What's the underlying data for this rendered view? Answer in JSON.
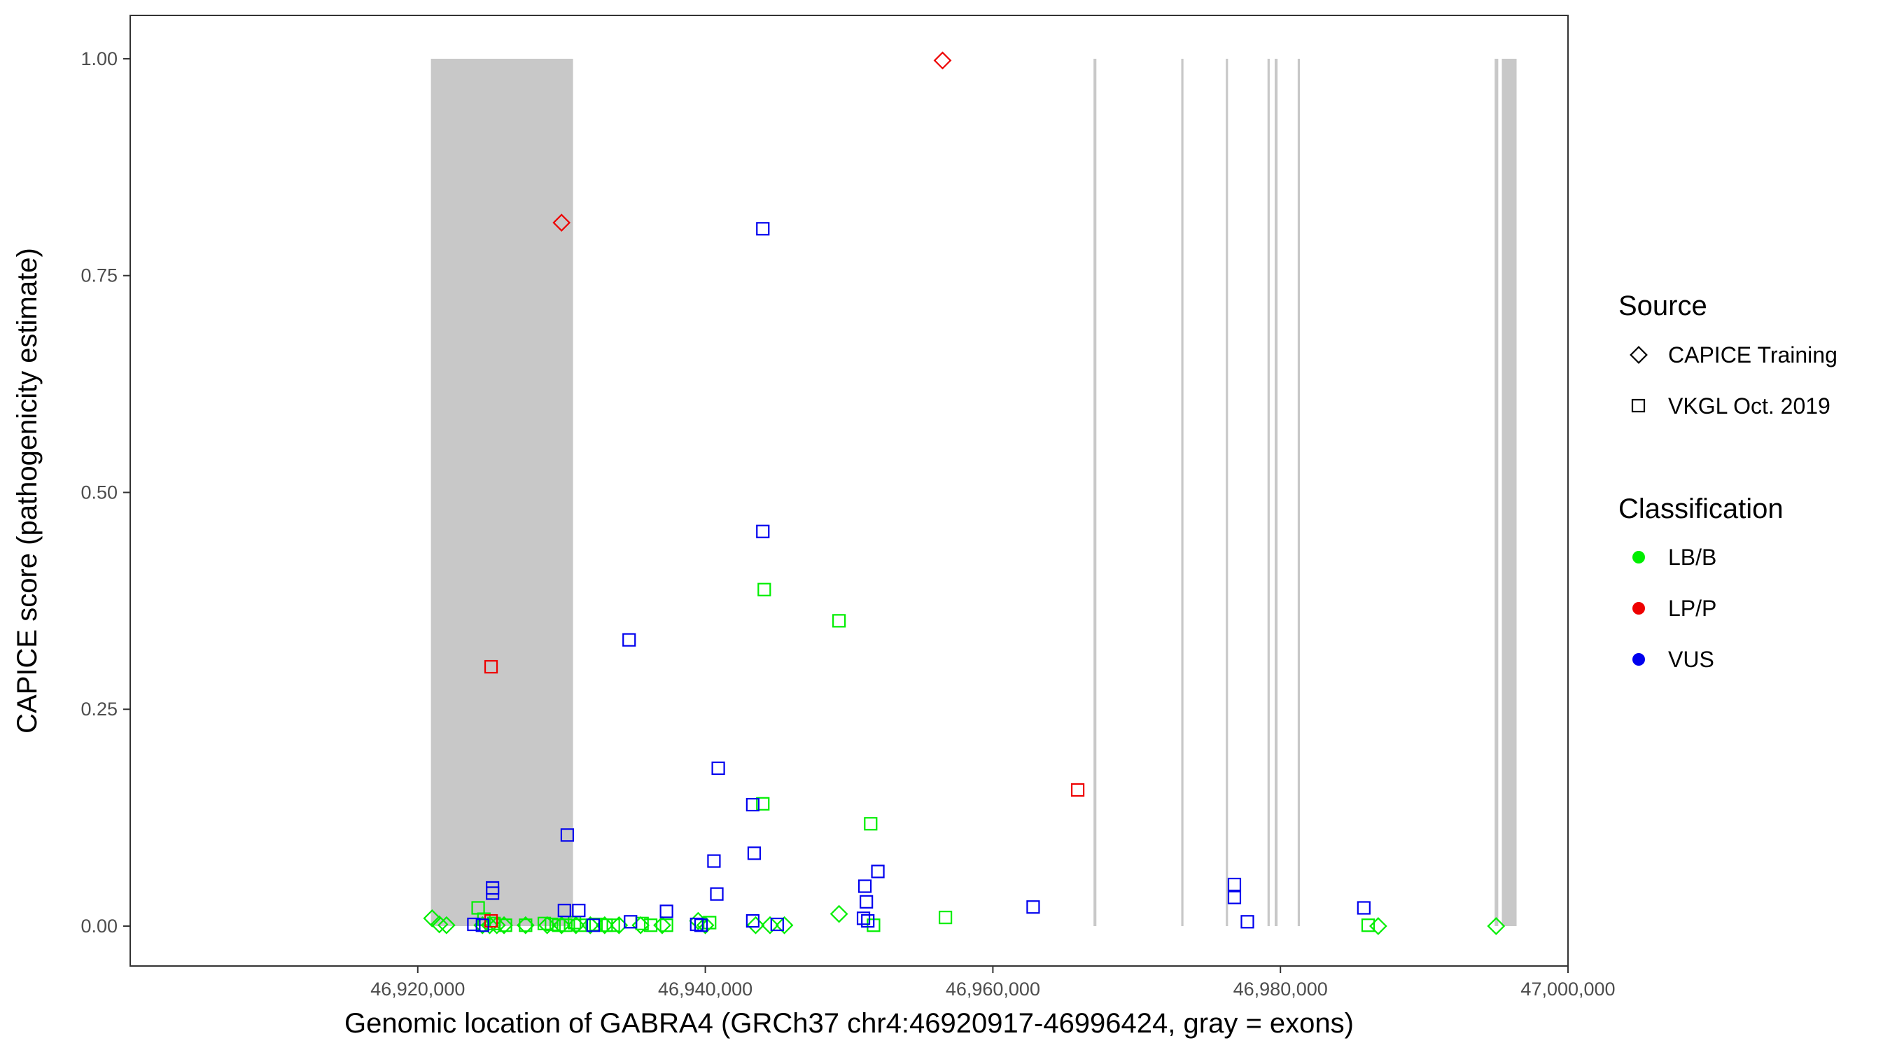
{
  "chart_data": {
    "type": "scatter",
    "title": "",
    "xlabel": "Genomic location of GABRA4 (GRCh37 chr4:46920917-46996424, gray = exons)",
    "ylabel": "CAPICE score (pathogenicity estimate)",
    "xlim": [
      46900000,
      47000000
    ],
    "ylim": [
      -0.046,
      1.05
    ],
    "x_ticks": [
      46920000,
      46940000,
      46960000,
      46980000,
      47000000
    ],
    "x_tick_labels": [
      "46,920,000",
      "46,940,000",
      "46,960,000",
      "46,980,000",
      "47,000,000"
    ],
    "y_ticks": [
      0,
      0.25,
      0.5,
      0.75,
      1
    ],
    "y_tick_labels": [
      "0.00",
      "0.25",
      "0.50",
      "0.75",
      "1.00"
    ],
    "grid": false,
    "exon_regions": [
      [
        46920917,
        46930800
      ],
      [
        46967000,
        46967200
      ],
      [
        46973100,
        46973250
      ],
      [
        46976200,
        46976350
      ],
      [
        46979100,
        46979250
      ],
      [
        46979600,
        46979800
      ],
      [
        46981200,
        46981300
      ],
      [
        46994900,
        46995150
      ],
      [
        46995400,
        46996424
      ]
    ],
    "exon_color": "#c8c8c8",
    "legend": {
      "placement": "right",
      "source_title": "Source",
      "source_items": [
        {
          "label": "CAPICE Training",
          "shape": "diamond"
        },
        {
          "label": "VKGL Oct. 2019",
          "shape": "square"
        }
      ],
      "class_title": "Classification",
      "class_items": [
        {
          "label": "LB/B",
          "color": "#00ee00"
        },
        {
          "label": "LP/P",
          "color": "#ee0000"
        },
        {
          "label": "VUS",
          "color": "#0000ee"
        }
      ]
    },
    "series": [
      {
        "name": "LB/B",
        "source": "CAPICE Training",
        "shape": "diamond",
        "color": "#00ee00",
        "x": [
          46921000,
          46921500,
          46922000,
          46924500,
          46925000,
          46925500,
          46926000,
          46927500,
          46929000,
          46930000,
          46931000,
          46932000,
          46933000,
          46934000,
          46935500,
          46937000,
          46939500,
          46940000,
          46943500,
          46944500,
          46945500,
          46949300,
          46986800,
          46995000
        ],
        "y": [
          0.009,
          0.002,
          0.001,
          0.001,
          0.001,
          0.001,
          0.001,
          0.001,
          0.001,
          0.001,
          0.001,
          0.001,
          0.001,
          0.001,
          0.001,
          0.001,
          0.006,
          0.001,
          0.001,
          0.001,
          0.001,
          0.014,
          0.0,
          0.0
        ]
      },
      {
        "name": "LB/B",
        "source": "VKGL Oct. 2019",
        "shape": "square",
        "color": "#00ee00",
        "x": [
          46924200,
          46924600,
          46925300,
          46926100,
          46927500,
          46928800,
          46929300,
          46929800,
          46930300,
          46930900,
          46931300,
          46932400,
          46933100,
          46933600,
          46935600,
          46936200,
          46937300,
          46940300,
          46944000,
          46944100,
          46949300,
          46951500,
          46951700,
          46956700,
          46986100
        ],
        "y": [
          0.021,
          0.008,
          0.003,
          0.001,
          0.001,
          0.003,
          0.002,
          0.001,
          0.001,
          0.004,
          0.001,
          0.002,
          0.001,
          0.001,
          0.003,
          0.001,
          0.001,
          0.004,
          0.141,
          0.388,
          0.352,
          0.118,
          0.001,
          0.01,
          0.001
        ]
      },
      {
        "name": "LP/P",
        "source": "CAPICE Training",
        "shape": "diamond",
        "color": "#ee0000",
        "x": [
          46930000,
          46956500
        ],
        "y": [
          0.811,
          0.998
        ]
      },
      {
        "name": "LP/P",
        "source": "VKGL Oct. 2019",
        "shape": "square",
        "color": "#ee0000",
        "x": [
          46925100,
          46925100,
          46965900
        ],
        "y": [
          0.299,
          0.006,
          0.157
        ]
      },
      {
        "name": "VUS",
        "source": "VKGL Oct. 2019",
        "shape": "square",
        "color": "#0000ee",
        "x": [
          46923900,
          46924500,
          46925200,
          46925200,
          46930200,
          46930400,
          46931200,
          46932200,
          46934700,
          46934800,
          46937300,
          46939400,
          46939700,
          46940600,
          46940900,
          46940800,
          46943300,
          46943400,
          46943300,
          46944000,
          46944000,
          46945000,
          46951000,
          46951100,
          46951200,
          46951300,
          46952000,
          46962800,
          46976800,
          46976800,
          46977700,
          46985800
        ],
        "y": [
          0.002,
          0.001,
          0.044,
          0.038,
          0.018,
          0.105,
          0.018,
          0.001,
          0.33,
          0.005,
          0.017,
          0.002,
          0.001,
          0.075,
          0.182,
          0.037,
          0.14,
          0.084,
          0.006,
          0.804,
          0.455,
          0.002,
          0.009,
          0.046,
          0.028,
          0.006,
          0.063,
          0.022,
          0.048,
          0.033,
          0.005,
          0.021
        ]
      }
    ]
  }
}
